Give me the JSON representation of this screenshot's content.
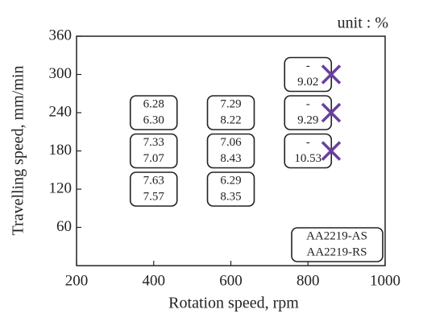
{
  "chart_data": {
    "type": "scatter",
    "annotation": "unit : %",
    "xlabel": "Rotation speed, rpm",
    "ylabel": "Travelling speed, mm/min",
    "xlim": [
      200,
      1000
    ],
    "xticks": [
      200,
      400,
      600,
      800,
      1000
    ],
    "ylim": [
      0,
      360
    ],
    "yticks": [
      60,
      120,
      180,
      240,
      300,
      360
    ],
    "x": [
      400,
      400,
      400,
      600,
      600,
      600,
      800,
      800,
      800
    ],
    "y": [
      240,
      180,
      120,
      240,
      180,
      120,
      300,
      240,
      180
    ],
    "series": [
      {
        "name": "AA2219-AS",
        "values": [
          6.28,
          7.33,
          7.63,
          7.29,
          7.06,
          6.29,
          null,
          null,
          null
        ],
        "value_labels": [
          "6.28",
          "7.33",
          "7.63",
          "7.29",
          "7.06",
          "6.29",
          "-",
          "-",
          "-"
        ]
      },
      {
        "name": "AA2219-RS",
        "values": [
          6.3,
          7.07,
          7.57,
          8.22,
          8.43,
          8.35,
          9.02,
          9.29,
          10.53
        ],
        "value_labels": [
          "6.30",
          "7.07",
          "7.57",
          "8.22",
          "8.43",
          "8.35",
          "9.02",
          "9.29",
          "10.53"
        ]
      }
    ],
    "failures": {
      "color": "#6a3fa0",
      "x": [
        860,
        860,
        860
      ],
      "y": [
        300,
        240,
        180
      ]
    }
  }
}
